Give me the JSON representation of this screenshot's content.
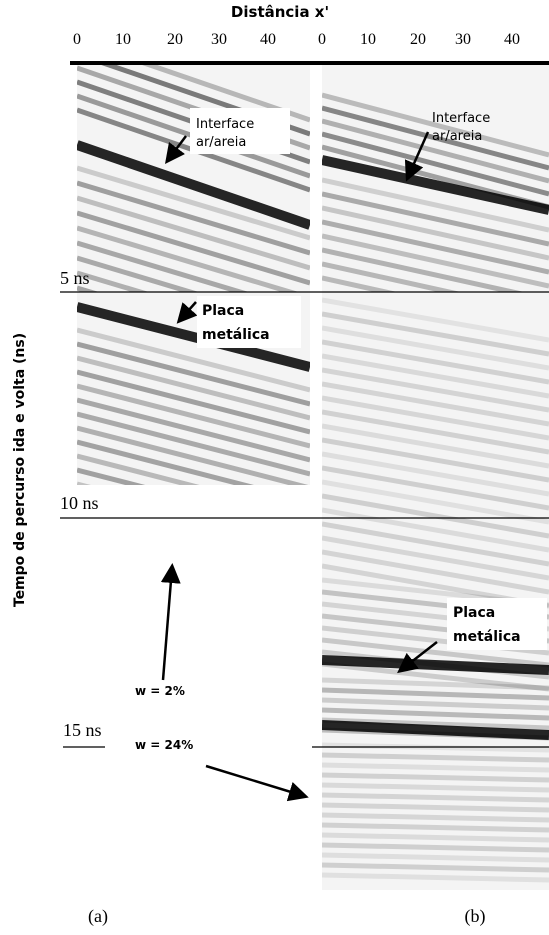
{
  "axis": {
    "title": "Distância x'",
    "ticks_a": [
      "0",
      "10",
      "20",
      "30",
      "40"
    ],
    "ticks_b": [
      "0",
      "10",
      "20",
      "30",
      "40"
    ],
    "y_title": "Tempo de percurso ida e volta (ns)",
    "time_labels": [
      "5 ns",
      "10 ns",
      "15 ns"
    ]
  },
  "annotations": {
    "a_interface": [
      "Interface",
      "ar/areia"
    ],
    "a_placa": [
      "Placa",
      "metálica"
    ],
    "b_interface": [
      "Interface",
      "ar/areia"
    ],
    "b_placa": [
      "Placa",
      "metálica"
    ],
    "w_low": "w = 2%",
    "w_high": "w = 24%"
  },
  "panels": [
    "(a)",
    "(b)"
  ]
}
